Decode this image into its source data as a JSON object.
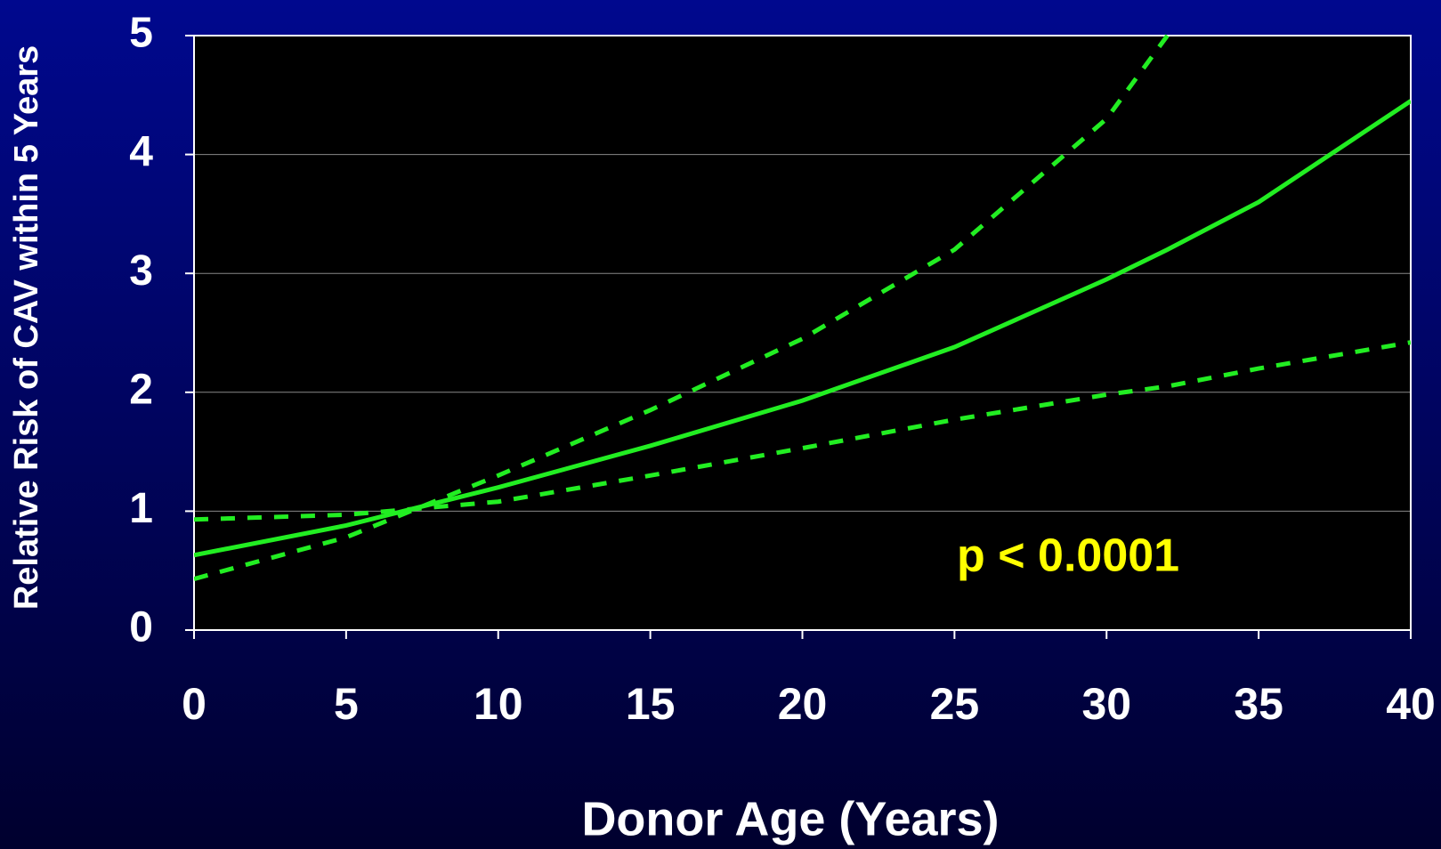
{
  "chart_data": {
    "type": "line",
    "x": [
      0,
      5,
      10,
      15,
      20,
      25,
      30,
      32,
      35,
      40
    ],
    "series": [
      {
        "color": "#22ee22",
        "dash": false,
        "values": [
          0.63,
          0.88,
          1.2,
          1.55,
          1.93,
          2.38,
          2.95,
          3.2,
          3.6,
          4.45
        ]
      },
      {
        "color": "#22ee22",
        "dash": true,
        "values": [
          0.43,
          0.78,
          1.3,
          1.85,
          2.45,
          3.2,
          4.3,
          5.0,
          null,
          null
        ]
      },
      {
        "color": "#22ee22",
        "dash": true,
        "values": [
          0.93,
          0.97,
          1.08,
          1.3,
          1.53,
          1.77,
          1.98,
          2.05,
          2.2,
          2.42
        ]
      }
    ],
    "xlim": [
      0,
      40
    ],
    "xticks": [
      0,
      5,
      10,
      15,
      20,
      25,
      30,
      35,
      40
    ],
    "ylim": [
      0,
      5
    ],
    "yticks": [
      0,
      1,
      2,
      3,
      4,
      5
    ],
    "grid": true,
    "xlabel": "Donor Age (Years)",
    "ylabel": "Relative Risk of CAV within 5 Years",
    "annotation": "p < 0.0001"
  }
}
